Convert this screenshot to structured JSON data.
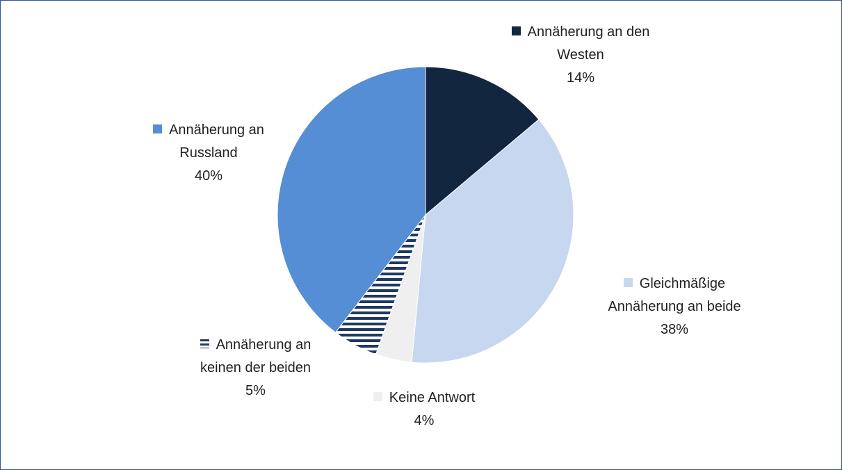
{
  "chart_data": {
    "type": "pie",
    "categories": [
      "Annäherung an den Westen",
      "Gleichmäßige Annäherung an beide",
      "Keine Antwort",
      "Annäherung an keinen der beiden",
      "Annäherung an Russland"
    ],
    "values": [
      14,
      38,
      4,
      5,
      40
    ],
    "value_labels": [
      "14%",
      "38%",
      "4%",
      "5%",
      "40%"
    ],
    "colors": [
      "#12263f",
      "#c6d7ef",
      "#efefef",
      "#1f3864",
      "#558ed5"
    ],
    "hatch": [
      false,
      false,
      false,
      true,
      false
    ]
  }
}
